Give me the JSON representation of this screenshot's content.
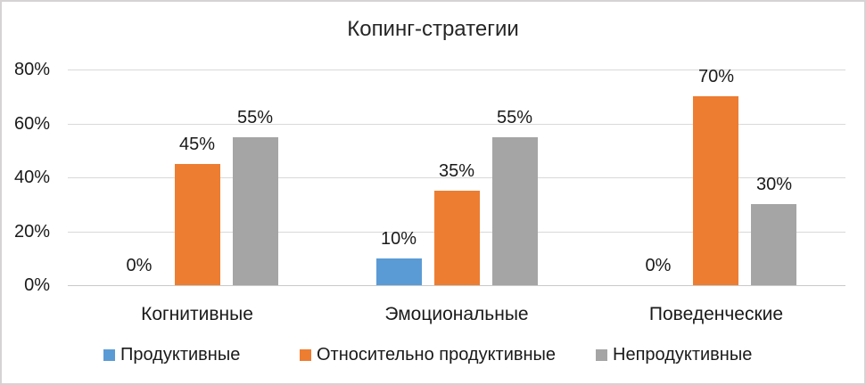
{
  "chart_data": {
    "type": "bar",
    "title": "Копинг-стратегии",
    "categories": [
      "Когнитивные",
      "Эмоциональные",
      "Поведенческие"
    ],
    "series": [
      {
        "name": "Продуктивные",
        "color": "#5B9BD5",
        "values": [
          0,
          10,
          0
        ]
      },
      {
        "name": "Относительно продуктивные",
        "color": "#ED7D31",
        "values": [
          45,
          35,
          70
        ]
      },
      {
        "name": "Непродуктивные",
        "color": "#A5A5A5",
        "values": [
          55,
          55,
          30
        ]
      }
    ],
    "value_suffix": "%",
    "y_ticks": [
      "0%",
      "20%",
      "40%",
      "60%",
      "80%"
    ],
    "ylim": [
      0,
      80
    ],
    "grid": true,
    "legend_position": "bottom"
  }
}
